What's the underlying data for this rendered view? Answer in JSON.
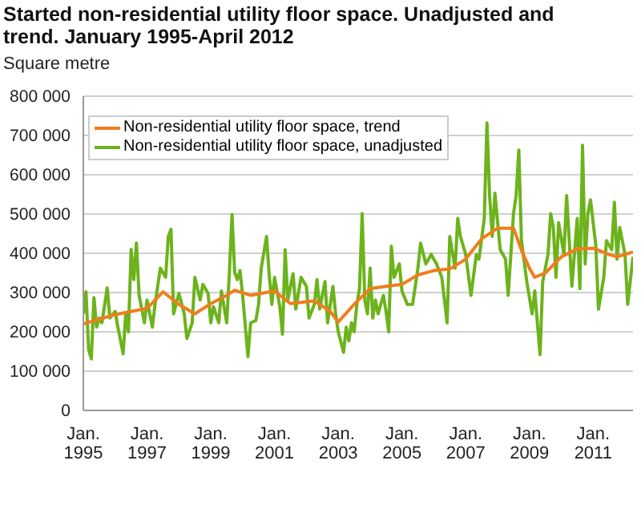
{
  "chart_data": {
    "type": "line",
    "title": "Started non-residential utility floor space. Unadjusted and trend. January 1995-April 2012",
    "ylabel": "Square metre",
    "xlim": [
      "1995-01",
      "2012-04"
    ],
    "xticks": [
      {
        "value": "1995-01",
        "label": "Jan. 1995"
      },
      {
        "value": "1997-01",
        "label": "Jan. 1997"
      },
      {
        "value": "1999-01",
        "label": "Jan. 1999"
      },
      {
        "value": "2001-01",
        "label": "Jan. 2001"
      },
      {
        "value": "2003-01",
        "label": "Jan. 2003"
      },
      {
        "value": "2005-01",
        "label": "Jan. 2005"
      },
      {
        "value": "2007-01",
        "label": "Jan. 2007"
      },
      {
        "value": "2009-01",
        "label": "Jan. 2009"
      },
      {
        "value": "2011-01",
        "label": "Jan. 2011"
      }
    ],
    "ylim": [
      0,
      800000
    ],
    "yticks": [
      {
        "value": 0,
        "label": "0"
      },
      {
        "value": 100000,
        "label": "100 000"
      },
      {
        "value": 200000,
        "label": "200 000"
      },
      {
        "value": 300000,
        "label": "300 000"
      },
      {
        "value": 400000,
        "label": "400 000"
      },
      {
        "value": 500000,
        "label": "500 000"
      },
      {
        "value": 600000,
        "label": "600 000"
      },
      {
        "value": 700000,
        "label": "700 000"
      },
      {
        "value": 800000,
        "label": "800 000"
      }
    ],
    "grid": "y",
    "legend": "top left",
    "marker": "none",
    "line_style": "solid",
    "series": [
      {
        "name": "Non-residential utility floor space, trend",
        "color": "#f07d1e",
        "x": [
          "1995-01",
          "1996-01",
          "1997-01",
          "1997-07",
          "1998-01",
          "1998-07",
          "1999-01",
          "1999-07",
          "1999-10",
          "2000-04",
          "2001-01",
          "2001-07",
          "2002-04",
          "2002-10",
          "2003-01",
          "2003-07",
          "2004-01",
          "2004-07",
          "2005-01",
          "2005-07",
          "2006-01",
          "2006-07",
          "2007-01",
          "2007-07",
          "2008-01",
          "2008-07",
          "2008-10",
          "2009-01",
          "2009-03",
          "2009-07",
          "2010-01",
          "2010-07",
          "2011-01",
          "2011-07",
          "2011-10",
          "2012-04"
        ],
        "values": [
          220000,
          244000,
          260000,
          302000,
          270000,
          246000,
          272000,
          293000,
          306000,
          293000,
          304000,
          272000,
          279000,
          252000,
          225000,
          270000,
          310000,
          316000,
          321000,
          345000,
          356000,
          360000,
          385000,
          437000,
          464000,
          464000,
          408000,
          362000,
          339000,
          350000,
          391000,
          411000,
          413000,
          397000,
          391000,
          403000
        ]
      },
      {
        "name": "Non-residential utility floor space, unadjusted",
        "color": "#6cb31c",
        "x": [
          "1995-01",
          "1995-02",
          "1995-03",
          "1995-04",
          "1995-05",
          "1995-06",
          "1995-07",
          "1995-08",
          "1995-10",
          "1995-11",
          "1996-01",
          "1996-02",
          "1996-04",
          "1996-05",
          "1996-06",
          "1996-07",
          "1996-08",
          "1996-09",
          "1996-10",
          "1996-12",
          "1997-01",
          "1997-03",
          "1997-04",
          "1997-06",
          "1997-08",
          "1997-09",
          "1997-10",
          "1997-11",
          "1998-01",
          "1998-03",
          "1998-04",
          "1998-06",
          "1998-07",
          "1998-09",
          "1998-10",
          "1998-12",
          "1999-01",
          "1999-02",
          "1999-04",
          "1999-05",
          "1999-07",
          "1999-08",
          "1999-09",
          "1999-10",
          "1999-11",
          "1999-12",
          "2000-01",
          "2000-03",
          "2000-04",
          "2000-06",
          "2000-07",
          "2000-08",
          "2000-10",
          "2000-11",
          "2000-12",
          "2001-01",
          "2001-03",
          "2001-04",
          "2001-05",
          "2001-06",
          "2001-08",
          "2001-09",
          "2001-11",
          "2002-01",
          "2002-02",
          "2002-04",
          "2002-05",
          "2002-06",
          "2002-08",
          "2002-09",
          "2002-11",
          "2002-12",
          "2003-01",
          "2003-03",
          "2003-04",
          "2003-05",
          "2003-06",
          "2003-07",
          "2003-08",
          "2003-09",
          "2003-10",
          "2003-11",
          "2003-12",
          "2004-01",
          "2004-02",
          "2004-03",
          "2004-04",
          "2004-06",
          "2004-07",
          "2004-08",
          "2004-09",
          "2004-10",
          "2004-12",
          "2005-01",
          "2005-03",
          "2005-05",
          "2005-07",
          "2005-08",
          "2005-10",
          "2005-12",
          "2006-02",
          "2006-04",
          "2006-06",
          "2006-07",
          "2006-09",
          "2006-10",
          "2006-11",
          "2007-01",
          "2007-03",
          "2007-05",
          "2007-06",
          "2007-08",
          "2007-09",
          "2007-10",
          "2007-11",
          "2007-12",
          "2008-02",
          "2008-04",
          "2008-05",
          "2008-07",
          "2008-08",
          "2008-09",
          "2008-10",
          "2008-12",
          "2009-02",
          "2009-03",
          "2009-05",
          "2009-06",
          "2009-08",
          "2009-09",
          "2009-10",
          "2009-11",
          "2009-12",
          "2010-02",
          "2010-03",
          "2010-04",
          "2010-05",
          "2010-07",
          "2010-08",
          "2010-09",
          "2010-10",
          "2010-11",
          "2010-12",
          "2011-02",
          "2011-03",
          "2011-05",
          "2011-06",
          "2011-08",
          "2011-09",
          "2011-10",
          "2011-11",
          "2012-01",
          "2012-02",
          "2012-04"
        ],
        "values": [
          246000,
          302000,
          154000,
          131000,
          287000,
          212000,
          235000,
          223000,
          312000,
          235000,
          252000,
          212000,
          144000,
          249000,
          200000,
          410000,
          333000,
          426000,
          293000,
          223000,
          281000,
          212000,
          270000,
          362000,
          339000,
          443000,
          461000,
          246000,
          298000,
          246000,
          183000,
          223000,
          339000,
          281000,
          321000,
          298000,
          223000,
          264000,
          223000,
          304000,
          223000,
          351000,
          499000,
          351000,
          333000,
          356000,
          293000,
          137000,
          223000,
          229000,
          270000,
          362000,
          443000,
          345000,
          270000,
          339000,
          264000,
          194000,
          409000,
          281000,
          348000,
          258000,
          339000,
          316000,
          235000,
          270000,
          333000,
          258000,
          328000,
          223000,
          316000,
          246000,
          200000,
          148000,
          212000,
          177000,
          223000,
          200000,
          270000,
          310000,
          501000,
          281000,
          246000,
          362000,
          235000,
          281000,
          246000,
          293000,
          252000,
          200000,
          418000,
          339000,
          373000,
          304000,
          270000,
          270000,
          362000,
          426000,
          373000,
          397000,
          373000,
          339000,
          223000,
          443000,
          362000,
          489000,
          443000,
          397000,
          293000,
          397000,
          385000,
          489000,
          732000,
          547000,
          443000,
          553000,
          409000,
          385000,
          293000,
          501000,
          547000,
          663000,
          432000,
          328000,
          246000,
          304000,
          142000,
          328000,
          397000,
          501000,
          466000,
          339000,
          478000,
          397000,
          547000,
          432000,
          316000,
          489000,
          310000,
          675000,
          373000,
          501000,
          536000,
          420000,
          258000,
          339000,
          432000,
          409000,
          530000,
          385000,
          466000,
          397000,
          270000,
          391000
        ]
      }
    ]
  }
}
